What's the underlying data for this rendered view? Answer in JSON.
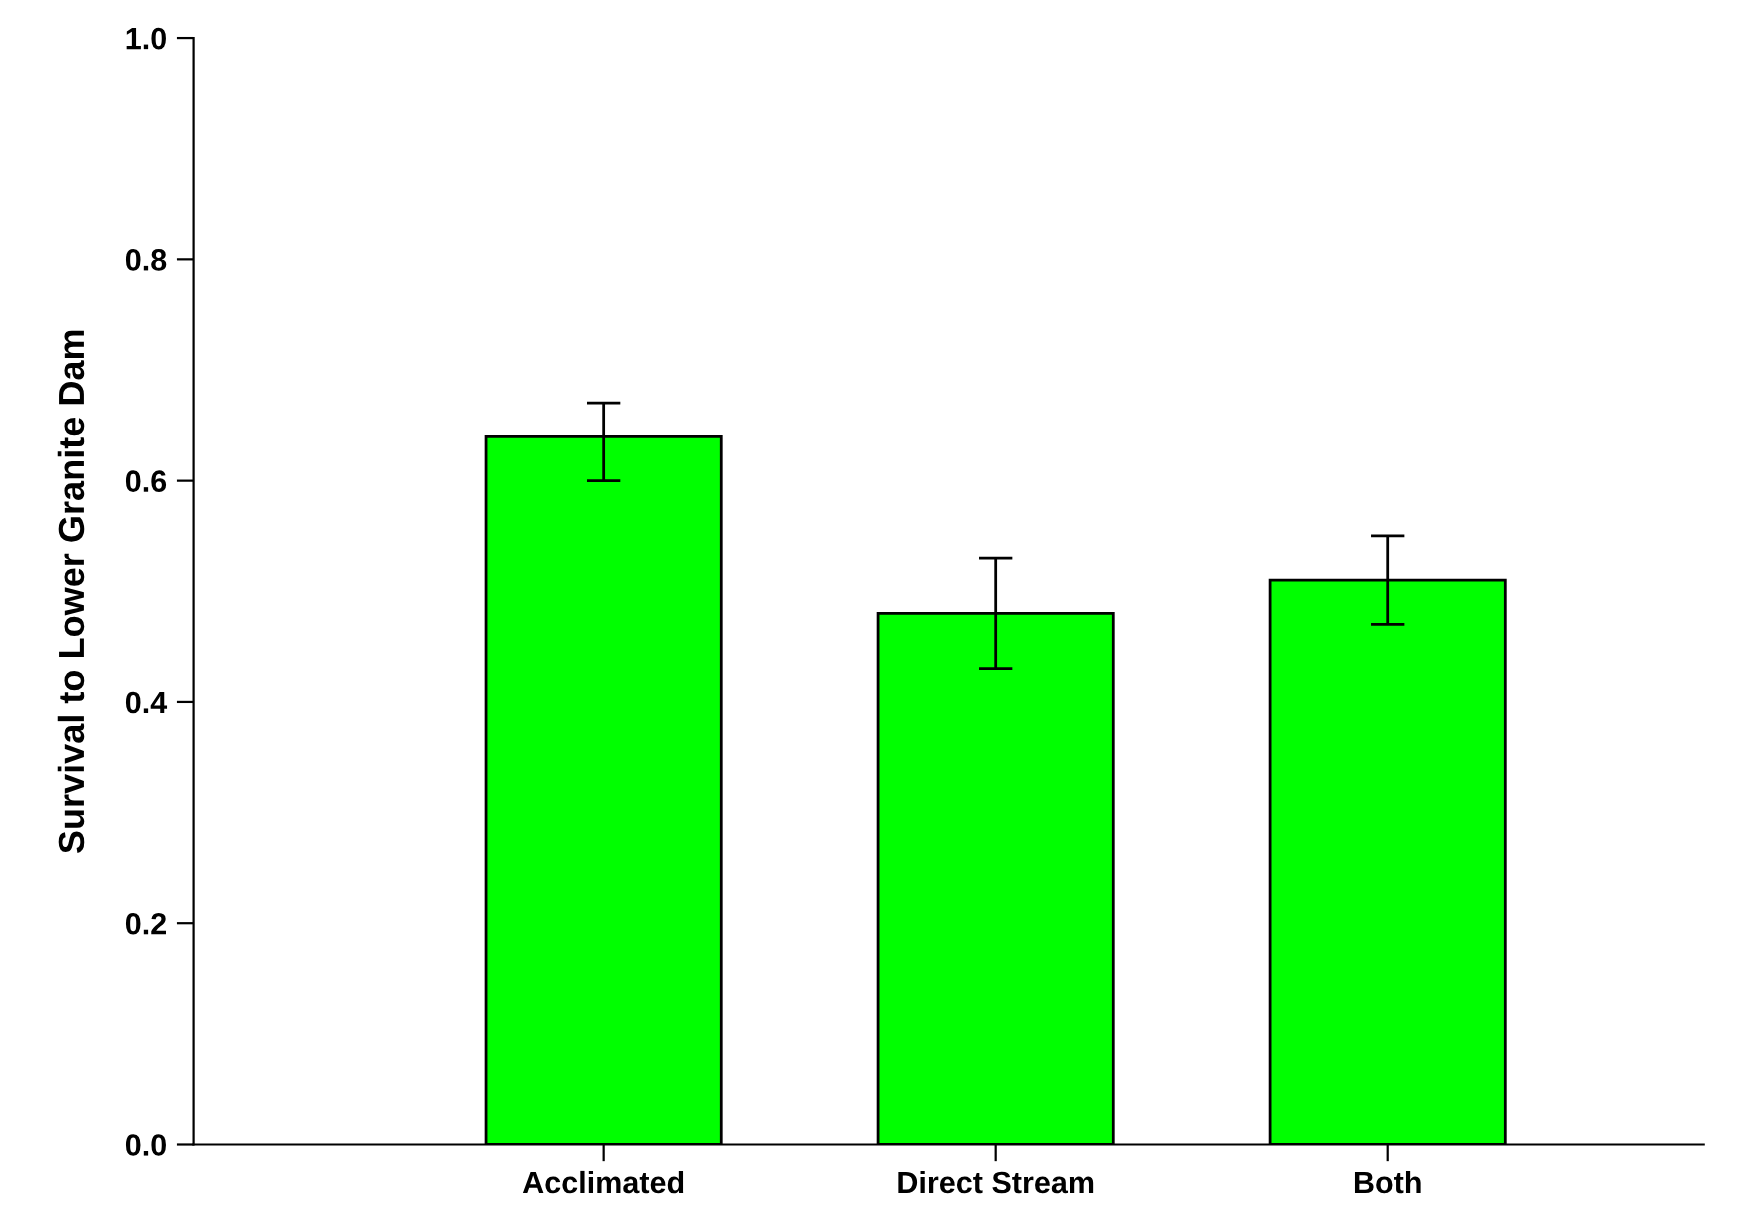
{
  "chart_data": {
    "type": "bar",
    "ylabel": "Survival to Lower Granite Dam",
    "categories": [
      "Acclimated",
      "Direct Stream",
      "Both"
    ],
    "values": [
      0.64,
      0.48,
      0.51
    ],
    "errors": [
      [
        0.6,
        0.67
      ],
      [
        0.43,
        0.53
      ],
      [
        0.47,
        0.55
      ]
    ],
    "color": "#00ff00",
    "ylim": [
      0,
      1
    ],
    "yticks": [
      {
        "value": 0,
        "label": "0.0"
      },
      {
        "value": 0.2,
        "label": "0.2"
      },
      {
        "value": 0.4,
        "label": "0.4"
      },
      {
        "value": 0.6,
        "label": "0.6"
      },
      {
        "value": 0.8,
        "label": "0.8"
      },
      {
        "value": 1,
        "label": "1.0"
      }
    ],
    "grid": false
  }
}
